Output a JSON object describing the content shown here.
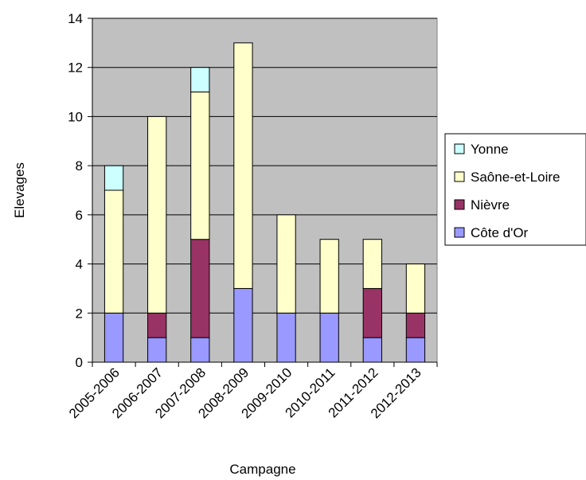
{
  "chart_data": {
    "type": "bar",
    "stacked": true,
    "title": "",
    "xlabel": "Campagne",
    "ylabel": "Elevages",
    "categories": [
      "2005-2006",
      "2006-2007",
      "2007-2008",
      "2008-2009",
      "2009-2010",
      "2010-2011",
      "2011-2012",
      "2012-2013"
    ],
    "series": [
      {
        "name": "Côte d'Or",
        "color": "#9999ff",
        "values": [
          2,
          1,
          1,
          3,
          2,
          2,
          1,
          1
        ]
      },
      {
        "name": "Nièvre",
        "color": "#993366",
        "values": [
          0,
          1,
          4,
          0,
          0,
          0,
          2,
          1
        ]
      },
      {
        "name": "Saône-et-Loire",
        "color": "#ffffcc",
        "values": [
          5,
          8,
          6,
          10,
          4,
          3,
          2,
          2
        ]
      },
      {
        "name": "Yonne",
        "color": "#ccffff",
        "values": [
          1,
          0,
          1,
          0,
          0,
          0,
          0,
          0
        ]
      }
    ],
    "ylim": [
      0,
      14
    ],
    "yticks": [
      0,
      2,
      4,
      6,
      8,
      10,
      12,
      14
    ],
    "grid": true,
    "plot_background": "#c0c0c0",
    "legend_position": "right"
  }
}
